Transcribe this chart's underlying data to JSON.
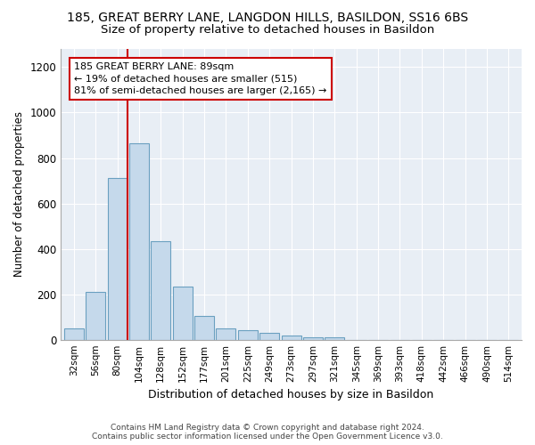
{
  "title": "185, GREAT BERRY LANE, LANGDON HILLS, BASILDON, SS16 6BS",
  "subtitle": "Size of property relative to detached houses in Basildon",
  "xlabel": "Distribution of detached houses by size in Basildon",
  "ylabel": "Number of detached properties",
  "categories": [
    "32sqm",
    "56sqm",
    "80sqm",
    "104sqm",
    "128sqm",
    "152sqm",
    "177sqm",
    "201sqm",
    "225sqm",
    "249sqm",
    "273sqm",
    "297sqm",
    "321sqm",
    "345sqm",
    "369sqm",
    "393sqm",
    "418sqm",
    "442sqm",
    "466sqm",
    "490sqm",
    "514sqm"
  ],
  "values": [
    48,
    210,
    710,
    865,
    435,
    232,
    105,
    48,
    40,
    30,
    20,
    10,
    10,
    0,
    0,
    0,
    0,
    0,
    0,
    0,
    0
  ],
  "bar_color": "#c5d9eb",
  "bar_edge_color": "#6aa0c0",
  "annotation_line1": "185 GREAT BERRY LANE: 89sqm",
  "annotation_line2": "← 19% of detached houses are smaller (515)",
  "annotation_line3": "81% of semi-detached houses are larger (2,165) →",
  "vline_color": "#cc0000",
  "annotation_box_bg": "#ffffff",
  "annotation_box_edge": "#cc0000",
  "ylim": [
    0,
    1280
  ],
  "yticks": [
    0,
    200,
    400,
    600,
    800,
    1000,
    1200
  ],
  "grid_color": "#ffffff",
  "background_color": "#e8eef5",
  "footer_line1": "Contains HM Land Registry data © Crown copyright and database right 2024.",
  "footer_line2": "Contains public sector information licensed under the Open Government Licence v3.0.",
  "title_fontsize": 10,
  "subtitle_fontsize": 9.5,
  "ylabel_fontsize": 8.5,
  "xlabel_fontsize": 9
}
